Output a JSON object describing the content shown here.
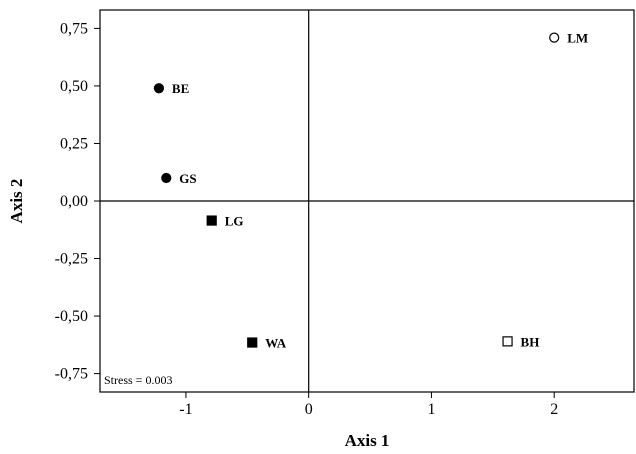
{
  "chart_data": {
    "type": "scatter",
    "title": "",
    "xlabel": "Axis 1",
    "ylabel": "Axis 2",
    "xlim": [
      -1.7,
      2.65
    ],
    "ylim": [
      -0.83,
      0.83
    ],
    "x_ticks": [
      {
        "value": -1,
        "label": "-1"
      },
      {
        "value": 0,
        "label": "0"
      },
      {
        "value": 1,
        "label": "1"
      },
      {
        "value": 2,
        "label": "2"
      }
    ],
    "y_ticks": [
      {
        "value": 0.75,
        "label": "0,75"
      },
      {
        "value": 0.5,
        "label": "0,50"
      },
      {
        "value": 0.25,
        "label": "0,25"
      },
      {
        "value": 0,
        "label": "0,00"
      },
      {
        "value": -0.25,
        "label": "-0,25"
      },
      {
        "value": -0.5,
        "label": "-0,50"
      },
      {
        "value": -0.75,
        "label": "-0,75"
      }
    ],
    "reference_lines": {
      "x": 0,
      "y": 0
    },
    "grid": false,
    "annotation": "Stress = 0.003",
    "points": [
      {
        "label": "LM",
        "x": 2.0,
        "y": 0.71,
        "marker": "circle",
        "filled": false
      },
      {
        "label": "BE",
        "x": -1.22,
        "y": 0.49,
        "marker": "circle",
        "filled": true
      },
      {
        "label": "GS",
        "x": -1.16,
        "y": 0.1,
        "marker": "circle",
        "filled": true
      },
      {
        "label": "LG",
        "x": -0.79,
        "y": -0.085,
        "marker": "square",
        "filled": true
      },
      {
        "label": "WA",
        "x": -0.46,
        "y": -0.615,
        "marker": "square",
        "filled": true
      },
      {
        "label": "BH",
        "x": 1.62,
        "y": -0.61,
        "marker": "square",
        "filled": false
      }
    ],
    "colors": {
      "marker": "#000000",
      "background": "#ffffff"
    }
  }
}
